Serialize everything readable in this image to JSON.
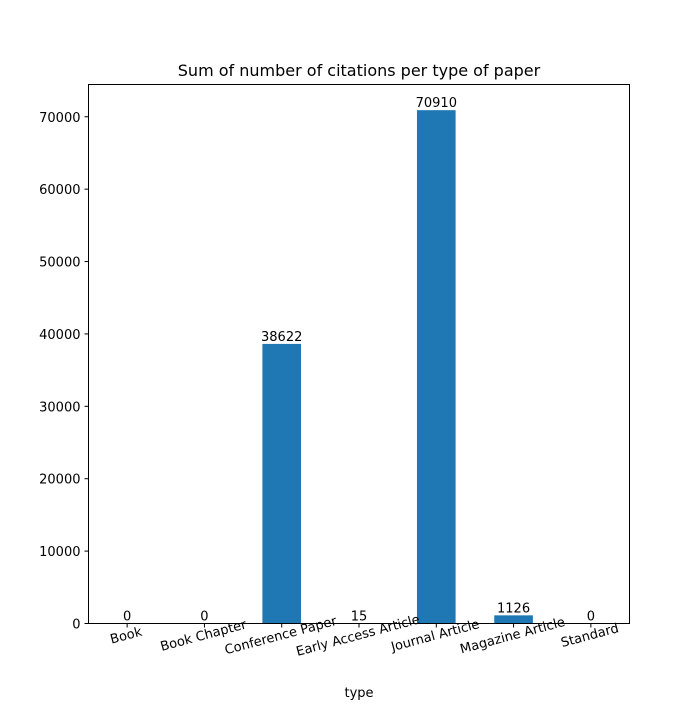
{
  "chart_data": {
    "type": "bar",
    "title": "Sum of number of citations per type of paper",
    "xlabel": "type",
    "ylabel": "",
    "categories": [
      "Book",
      "Book Chapter",
      "Conference Paper",
      "Early Access Article",
      "Journal Article",
      "Magazine Article",
      "Standard"
    ],
    "values": [
      0,
      0,
      38622,
      15,
      70910,
      1126,
      0
    ],
    "data_labels": [
      "0",
      "0",
      "38622",
      "15",
      "70910",
      "1126",
      "0"
    ],
    "ylim": [
      0,
      74456
    ],
    "yticks": [
      0,
      10000,
      20000,
      30000,
      40000,
      50000,
      60000,
      70000
    ],
    "ytick_labels": [
      "0",
      "10000",
      "20000",
      "30000",
      "40000",
      "50000",
      "60000",
      "70000"
    ],
    "grid": false,
    "legend": "none",
    "bar_color": "#1f77b4"
  }
}
